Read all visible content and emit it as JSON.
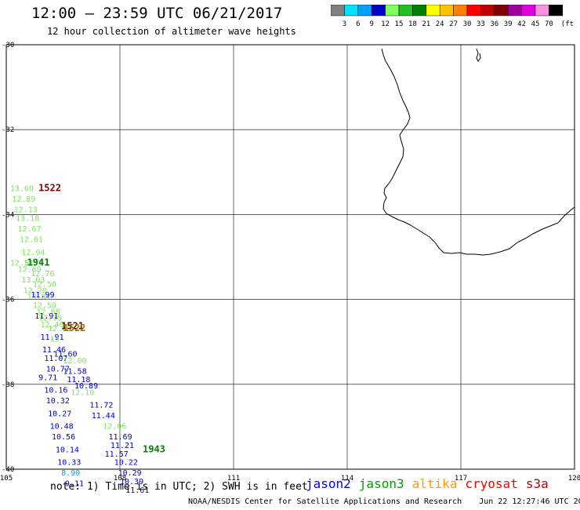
{
  "header": {
    "title": "12:00 – 23:59 UTC 06/21/2017",
    "subtitle": "12 hour collection of altimeter wave heights"
  },
  "colorbar": {
    "unit": "(ft)",
    "labels": [
      "3",
      "6",
      "9",
      "12",
      "15",
      "18",
      "21",
      "24",
      "27",
      "30",
      "33",
      "36",
      "39",
      "42",
      "45",
      "70"
    ],
    "colors": [
      "#808080",
      "#00e0ff",
      "#00a0ff",
      "#0000c8",
      "#80ff60",
      "#20c020",
      "#008000",
      "#ffff00",
      "#ffc000",
      "#ff8000",
      "#ff0000",
      "#c00000",
      "#800000",
      "#a000a0",
      "#e000e0",
      "#ff90e0",
      "#000000"
    ]
  },
  "map": {
    "lon_labels": [
      "105",
      "108",
      "111",
      "114",
      "117",
      "120"
    ],
    "lat_labels": [
      "-30",
      "-32",
      "-34",
      "-36",
      "-38",
      "-40"
    ],
    "gridlines": true
  },
  "tracks": [
    {
      "time": "1522",
      "time_color": "#800000",
      "time_lon": 105.85,
      "time_lat": -33.45,
      "points": [
        {
          "lon": 105.1,
          "lat": -33.45,
          "v": "13.60",
          "c": "#80e060"
        },
        {
          "lon": 105.15,
          "lat": -33.7,
          "v": "12.89",
          "c": "#80e060"
        },
        {
          "lon": 105.2,
          "lat": -33.95,
          "v": "12.13",
          "c": "#80e060"
        },
        {
          "lon": 105.25,
          "lat": -34.15,
          "v": "13.18",
          "c": "#80e060"
        },
        {
          "lon": 105.3,
          "lat": -34.4,
          "v": "12.67",
          "c": "#80e060"
        },
        {
          "lon": 105.35,
          "lat": -34.65,
          "v": "12.61",
          "c": "#80e060"
        },
        {
          "lon": 105.4,
          "lat": -34.95,
          "v": "12.94",
          "c": "#80e060"
        },
        {
          "lon": 105.1,
          "lat": -35.2,
          "v": "12.51",
          "c": "#80e060"
        },
        {
          "lon": 105.45,
          "lat": -35.2,
          "v": "13.1",
          "c": "#80e060"
        },
        {
          "lon": 105.3,
          "lat": -35.35,
          "v": "12.69",
          "c": "#80e060"
        },
        {
          "lon": 105.65,
          "lat": -35.45,
          "v": "12.76",
          "c": "#80e060"
        },
        {
          "lon": 105.4,
          "lat": -35.6,
          "v": "13.03",
          "c": "#80e060"
        },
        {
          "lon": 105.7,
          "lat": -35.7,
          "v": "12.50",
          "c": "#80e060"
        },
        {
          "lon": 105.45,
          "lat": -35.85,
          "v": "12.20",
          "c": "#80e060"
        },
        {
          "lon": 105.55,
          "lat": -36.0,
          "v": "13.81",
          "c": "#80e060"
        },
        {
          "lon": 105.7,
          "lat": -36.2,
          "v": "12.50",
          "c": "#80e060"
        },
        {
          "lon": 105.8,
          "lat": -36.35,
          "v": "12.68",
          "c": "#80e060"
        },
        {
          "lon": 105.85,
          "lat": -36.5,
          "v": "12.35",
          "c": "#80e060"
        },
        {
          "lon": 105.9,
          "lat": -36.65,
          "v": "12.40",
          "c": "#80e060"
        },
        {
          "lon": 106.1,
          "lat": -36.75,
          "v": "12.80",
          "c": "#80e060"
        }
      ]
    },
    {
      "time": "1941",
      "time_color": "#008000",
      "time_lon": 105.55,
      "time_lat": -35.2,
      "points": [
        {
          "lon": 105.65,
          "lat": -35.95,
          "v": "11.99",
          "c": "#0000c8"
        },
        {
          "lon": 105.75,
          "lat": -36.45,
          "v": "11.91",
          "c": "#0000c8"
        },
        {
          "lon": 105.9,
          "lat": -36.95,
          "v": "11.91",
          "c": "#0000c8"
        },
        {
          "lon": 106.15,
          "lat": -37.0,
          "v": "13",
          "c": "#80e060"
        },
        {
          "lon": 105.95,
          "lat": -37.25,
          "v": "11.46",
          "c": "#0000c8"
        },
        {
          "lon": 106.25,
          "lat": -37.35,
          "v": "11.60",
          "c": "#0000c8"
        },
        {
          "lon": 106.0,
          "lat": -37.45,
          "v": "11.07",
          "c": "#0000c8"
        },
        {
          "lon": 106.5,
          "lat": -37.5,
          "v": "12.00",
          "c": "#80e060"
        },
        {
          "lon": 106.05,
          "lat": -37.7,
          "v": "10.77",
          "c": "#0000c8"
        },
        {
          "lon": 106.5,
          "lat": -37.75,
          "v": "11.58",
          "c": "#0000c8"
        },
        {
          "lon": 105.85,
          "lat": -37.9,
          "v": "9.71",
          "c": "#0000c8"
        },
        {
          "lon": 106.6,
          "lat": -37.95,
          "v": "11.18",
          "c": "#0000c8"
        },
        {
          "lon": 106.8,
          "lat": -38.1,
          "v": "10.89",
          "c": "#0000c8"
        },
        {
          "lon": 106.0,
          "lat": -38.2,
          "v": "10.16",
          "c": "#0000c8"
        },
        {
          "lon": 106.7,
          "lat": -38.25,
          "v": "12.10",
          "c": "#80e060"
        },
        {
          "lon": 106.05,
          "lat": -38.45,
          "v": "10.32",
          "c": "#0000c8"
        },
        {
          "lon": 107.2,
          "lat": -38.55,
          "v": "11.72",
          "c": "#0000c8"
        },
        {
          "lon": 106.1,
          "lat": -38.75,
          "v": "10.27",
          "c": "#0000c8"
        },
        {
          "lon": 107.25,
          "lat": -38.8,
          "v": "11.44",
          "c": "#0000c8"
        },
        {
          "lon": 106.15,
          "lat": -39.05,
          "v": "10.48",
          "c": "#0000c8"
        },
        {
          "lon": 107.55,
          "lat": -39.05,
          "v": "12.06",
          "c": "#80e060"
        },
        {
          "lon": 106.2,
          "lat": -39.3,
          "v": "10.56",
          "c": "#0000c8"
        }
      ]
    },
    {
      "time": "1943",
      "time_color": "#008000",
      "time_lon": 108.6,
      "time_lat": -39.6,
      "points": [
        {
          "lon": 107.7,
          "lat": -39.3,
          "v": "11.69",
          "c": "#0000c8"
        },
        {
          "lon": 107.75,
          "lat": -39.5,
          "v": "11.21",
          "c": "#0000c8"
        },
        {
          "lon": 106.3,
          "lat": -39.6,
          "v": "10.14",
          "c": "#0000c8"
        },
        {
          "lon": 107.6,
          "lat": -39.7,
          "v": "11.57",
          "c": "#0000c8"
        },
        {
          "lon": 107.85,
          "lat": -39.9,
          "v": "10.22",
          "c": "#0000c8"
        },
        {
          "lon": 106.35,
          "lat": -39.9,
          "v": "10.33",
          "c": "#0000c8"
        },
        {
          "lon": 106.45,
          "lat": -40.15,
          "v": "8.90",
          "c": "#00a0ff"
        },
        {
          "lon": 107.95,
          "lat": -40.15,
          "v": "10.29",
          "c": "#0000c8"
        },
        {
          "lon": 108.0,
          "lat": -40.35,
          "v": "10.39",
          "c": "#0000c8"
        },
        {
          "lon": 106.55,
          "lat": -40.4,
          "v": "9.11",
          "c": "#0000c8"
        },
        {
          "lon": 108.15,
          "lat": -40.55,
          "v": "11.61",
          "c": "#0000c8"
        }
      ]
    },
    {
      "time": "1521",
      "time_color": "#800000",
      "time_lon": 106.45,
      "time_lat": -36.7,
      "points": []
    },
    {
      "time": "1522",
      "time_color": "#808000",
      "time_lon": 106.5,
      "time_lat": -36.75,
      "points": []
    }
  ],
  "note": "note:  1) Time is in UTC;  2) SWH is in feet",
  "satellites": [
    {
      "name": "jason2",
      "color": "#0000ff"
    },
    {
      "name": "jason3",
      "color": "#00a000"
    },
    {
      "name": "altika",
      "color": "#ff9900"
    },
    {
      "name": "cryosat",
      "color": "#ff0000"
    },
    {
      "name": "s3a",
      "color": "#c00000"
    }
  ],
  "footer": {
    "credit": "NOAA/NESDIS Center for Satellite Applications and Research",
    "timestamp": "Jun 22 12:27:46 UTC 2017"
  }
}
